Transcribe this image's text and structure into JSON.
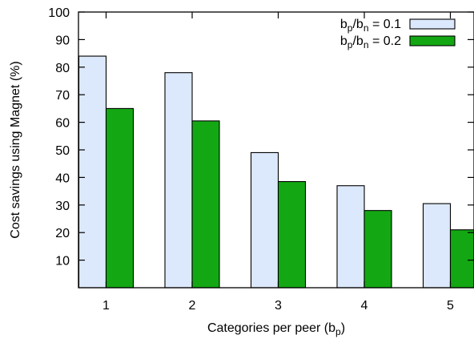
{
  "chart_data": {
    "type": "bar",
    "categories": [
      "1",
      "2",
      "3",
      "4",
      "5"
    ],
    "series": [
      {
        "name": "b_p/b_n = 0.1",
        "label_parts": [
          "b",
          "p",
          "/b",
          "n",
          " = 0.1"
        ],
        "color": "#dce8fb",
        "values": [
          84,
          78,
          49,
          37,
          30.5
        ]
      },
      {
        "name": "b_p/b_n = 0.2",
        "label_parts": [
          "b",
          "p",
          "/b",
          "n",
          " = 0.2"
        ],
        "color": "#13a813",
        "values": [
          65,
          60.5,
          38.5,
          28,
          21
        ]
      }
    ],
    "ylim": [
      0,
      100
    ],
    "yticks": [
      10,
      20,
      30,
      40,
      50,
      60,
      70,
      80,
      90,
      100
    ],
    "ylabel": "Cost savings using Magnet (%)",
    "xlabel_main": "Categories per peer (b",
    "xlabel_sub": "p",
    "xlabel_close": ")",
    "legend_position": "top-right",
    "grid": false
  }
}
